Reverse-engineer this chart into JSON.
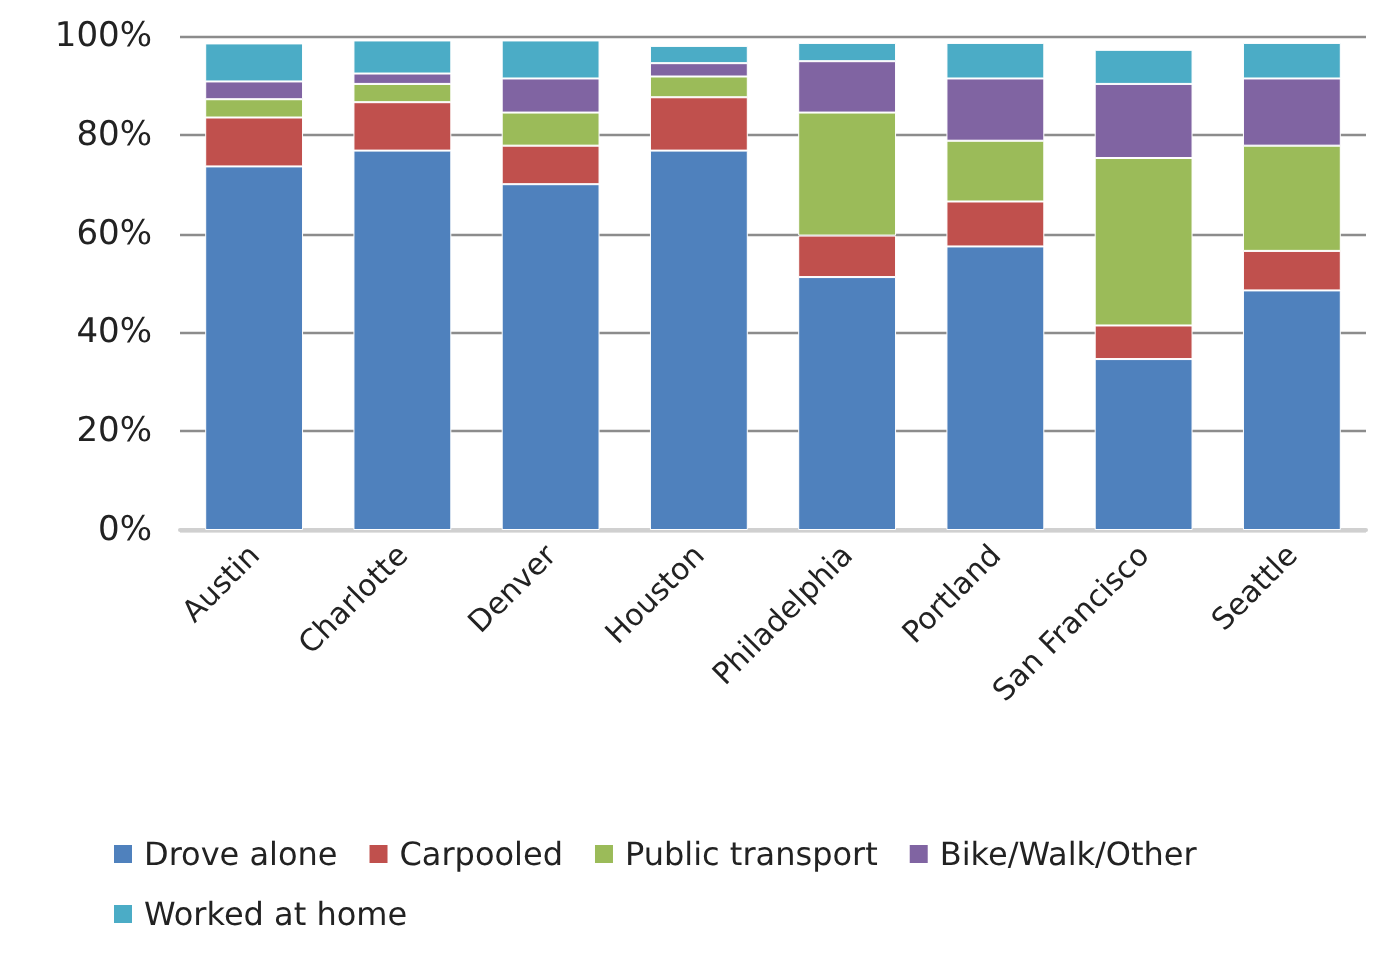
{
  "chart_data": {
    "type": "bar",
    "stacked": true,
    "categories": [
      "Austin",
      "Charlotte",
      "Denver",
      "Houston",
      "Philadelphia",
      "Portland",
      "San Francisco",
      "Seattle"
    ],
    "series": [
      {
        "name": "Drove alone",
        "color": "#4f81bd",
        "values": [
          73.6,
          76.8,
          70.0,
          76.8,
          51.2,
          57.4,
          34.6,
          48.5
        ]
      },
      {
        "name": "Carpooled",
        "color": "#c0504d",
        "values": [
          9.9,
          9.8,
          7.8,
          10.8,
          8.4,
          9.1,
          6.8,
          8.0
        ]
      },
      {
        "name": "Public transport",
        "color": "#9bbb59",
        "values": [
          3.7,
          3.7,
          6.7,
          4.2,
          24.9,
          12.3,
          33.9,
          21.3
        ]
      },
      {
        "name": "Bike/Walk/Other",
        "color": "#8064a2",
        "values": [
          3.6,
          2.1,
          6.9,
          2.7,
          10.4,
          12.6,
          15.0,
          13.6
        ]
      },
      {
        "name": "Worked at home",
        "color": "#4bacc6",
        "values": [
          7.7,
          6.7,
          7.7,
          3.5,
          3.7,
          7.2,
          6.9,
          7.2
        ]
      }
    ],
    "ylim": [
      0,
      100
    ],
    "yticks": [
      {
        "value": 0,
        "label": "0%"
      },
      {
        "value": 20,
        "label": "20%"
      },
      {
        "value": 40,
        "label": "40%"
      },
      {
        "value": 60,
        "label": "60%"
      },
      {
        "value": 80,
        "label": "80%"
      },
      {
        "value": 100,
        "label": "100%"
      }
    ],
    "grid": "y",
    "legend": "bottom"
  }
}
